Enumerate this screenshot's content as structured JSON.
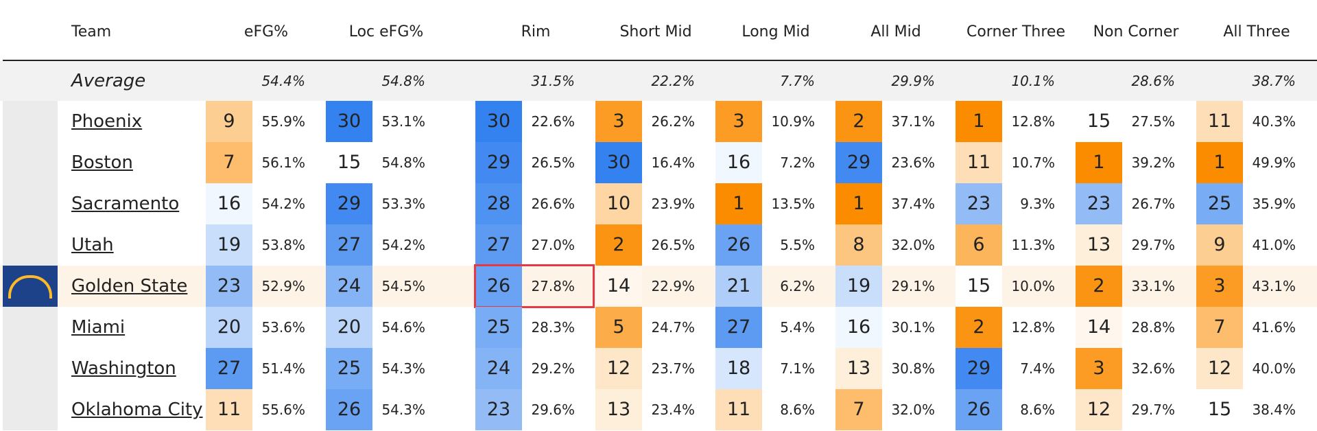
{
  "table": {
    "headers": [
      "Team",
      "eFG%",
      "Loc eFG%",
      "Rim",
      "Short Mid",
      "Long Mid",
      "All Mid",
      "Corner Three",
      "Non Corner",
      "All Three"
    ],
    "average": {
      "label": "Average",
      "values": [
        "54.4%",
        "54.8%",
        "31.5%",
        "22.2%",
        "7.7%",
        "29.9%",
        "10.1%",
        "28.6%",
        "38.7%"
      ]
    },
    "rows": [
      {
        "team": "Phoenix",
        "cells": [
          [
            9,
            "55.9%"
          ],
          [
            30,
            "53.1%"
          ],
          [
            30,
            "22.6%"
          ],
          [
            3,
            "26.2%"
          ],
          [
            3,
            "10.9%"
          ],
          [
            2,
            "37.1%"
          ],
          [
            1,
            "12.8%"
          ],
          [
            15,
            "27.5%"
          ],
          [
            11,
            "40.3%"
          ]
        ]
      },
      {
        "team": "Boston",
        "cells": [
          [
            7,
            "56.1%"
          ],
          [
            15,
            "54.8%"
          ],
          [
            29,
            "26.5%"
          ],
          [
            30,
            "16.4%"
          ],
          [
            16,
            "7.2%"
          ],
          [
            29,
            "23.6%"
          ],
          [
            11,
            "10.7%"
          ],
          [
            1,
            "39.2%"
          ],
          [
            1,
            "49.9%"
          ]
        ]
      },
      {
        "team": "Sacramento",
        "cells": [
          [
            16,
            "54.2%"
          ],
          [
            29,
            "53.3%"
          ],
          [
            28,
            "26.6%"
          ],
          [
            10,
            "23.9%"
          ],
          [
            1,
            "13.5%"
          ],
          [
            1,
            "37.4%"
          ],
          [
            23,
            "9.3%"
          ],
          [
            23,
            "26.7%"
          ],
          [
            25,
            "35.9%"
          ]
        ]
      },
      {
        "team": "Utah",
        "cells": [
          [
            19,
            "53.8%"
          ],
          [
            27,
            "54.2%"
          ],
          [
            27,
            "27.0%"
          ],
          [
            2,
            "26.5%"
          ],
          [
            26,
            "5.5%"
          ],
          [
            8,
            "32.0%"
          ],
          [
            6,
            "11.3%"
          ],
          [
            13,
            "29.7%"
          ],
          [
            9,
            "41.0%"
          ]
        ]
      },
      {
        "team": "Golden State",
        "cells": [
          [
            23,
            "52.9%"
          ],
          [
            24,
            "54.5%"
          ],
          [
            26,
            "27.8%"
          ],
          [
            14,
            "22.9%"
          ],
          [
            21,
            "6.2%"
          ],
          [
            19,
            "29.1%"
          ],
          [
            15,
            "10.0%"
          ],
          [
            2,
            "33.1%"
          ],
          [
            3,
            "43.1%"
          ]
        ]
      },
      {
        "team": "Miami",
        "cells": [
          [
            20,
            "53.6%"
          ],
          [
            20,
            "54.6%"
          ],
          [
            25,
            "28.3%"
          ],
          [
            5,
            "24.7%"
          ],
          [
            27,
            "5.4%"
          ],
          [
            16,
            "30.1%"
          ],
          [
            2,
            "12.8%"
          ],
          [
            14,
            "28.8%"
          ],
          [
            7,
            "41.6%"
          ]
        ]
      },
      {
        "team": "Washington",
        "cells": [
          [
            27,
            "51.4%"
          ],
          [
            25,
            "54.3%"
          ],
          [
            24,
            "29.2%"
          ],
          [
            12,
            "23.7%"
          ],
          [
            18,
            "7.1%"
          ],
          [
            13,
            "30.8%"
          ],
          [
            29,
            "7.4%"
          ],
          [
            3,
            "32.6%"
          ],
          [
            12,
            "40.0%"
          ]
        ]
      },
      {
        "team": "Oklahoma City",
        "cells": [
          [
            11,
            "55.6%"
          ],
          [
            26,
            "54.3%"
          ],
          [
            23,
            "29.6%"
          ],
          [
            13,
            "23.4%"
          ],
          [
            11,
            "8.6%"
          ],
          [
            7,
            "32.0%"
          ],
          [
            26,
            "8.6%"
          ],
          [
            12,
            "29.7%"
          ],
          [
            15,
            "38.4%"
          ]
        ]
      }
    ]
  }
}
